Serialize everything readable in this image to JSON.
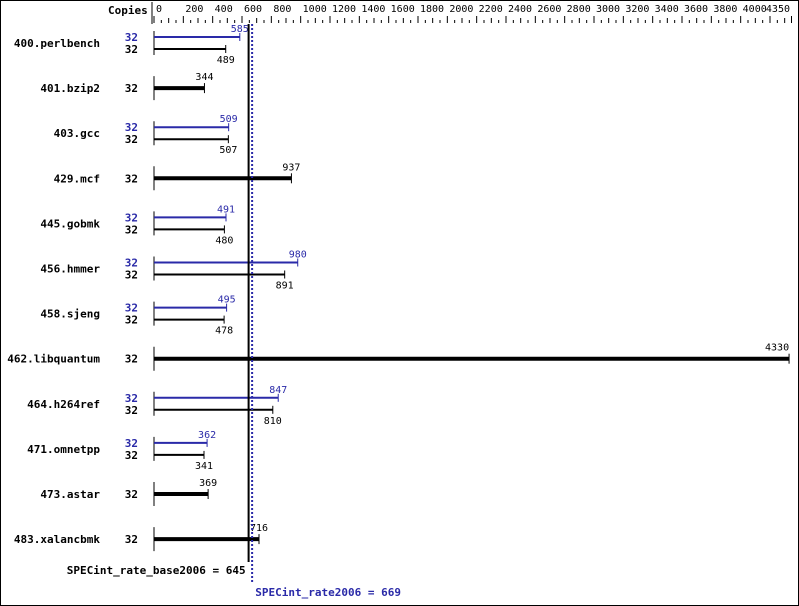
{
  "chart_data": {
    "type": "bar",
    "orientation": "horizontal",
    "copies_header": "Copies",
    "xlim": [
      0,
      4350
    ],
    "x_ticks": [
      0,
      200,
      400,
      600,
      800,
      1000,
      1200,
      1400,
      1600,
      1800,
      2000,
      2200,
      2400,
      2600,
      2800,
      3000,
      3200,
      3400,
      3600,
      3800,
      4000,
      4350
    ],
    "colors": {
      "peak": "#2a2aa8",
      "base": "#000000"
    },
    "benchmarks": [
      {
        "name": "400.perlbench",
        "peak_copies": "32",
        "peak": 585,
        "base_copies": "32",
        "base": 489
      },
      {
        "name": "401.bzip2",
        "base_copies": "32",
        "base": 344
      },
      {
        "name": "403.gcc",
        "peak_copies": "32",
        "peak": 509,
        "base_copies": "32",
        "base": 507
      },
      {
        "name": "429.mcf",
        "base_copies": "32",
        "base": 937
      },
      {
        "name": "445.gobmk",
        "peak_copies": "32",
        "peak": 491,
        "base_copies": "32",
        "base": 480
      },
      {
        "name": "456.hmmer",
        "peak_copies": "32",
        "peak": 980,
        "base_copies": "32",
        "base": 891
      },
      {
        "name": "458.sjeng",
        "peak_copies": "32",
        "peak": 495,
        "base_copies": "32",
        "base": 478
      },
      {
        "name": "462.libquantum",
        "base_copies": "32",
        "base": 4330
      },
      {
        "name": "464.h264ref",
        "peak_copies": "32",
        "peak": 847,
        "base_copies": "32",
        "base": 810
      },
      {
        "name": "471.omnetpp",
        "peak_copies": "32",
        "peak": 362,
        "base_copies": "32",
        "base": 341
      },
      {
        "name": "473.astar",
        "base_copies": "32",
        "base": 369
      },
      {
        "name": "483.xalancbmk",
        "base_copies": "32",
        "base": 716
      }
    ],
    "base_summary": {
      "label": "SPECint_rate_base2006 = 645",
      "value": 645
    },
    "peak_summary": {
      "label": "SPECint_rate2006 = 669",
      "value": 669
    }
  }
}
